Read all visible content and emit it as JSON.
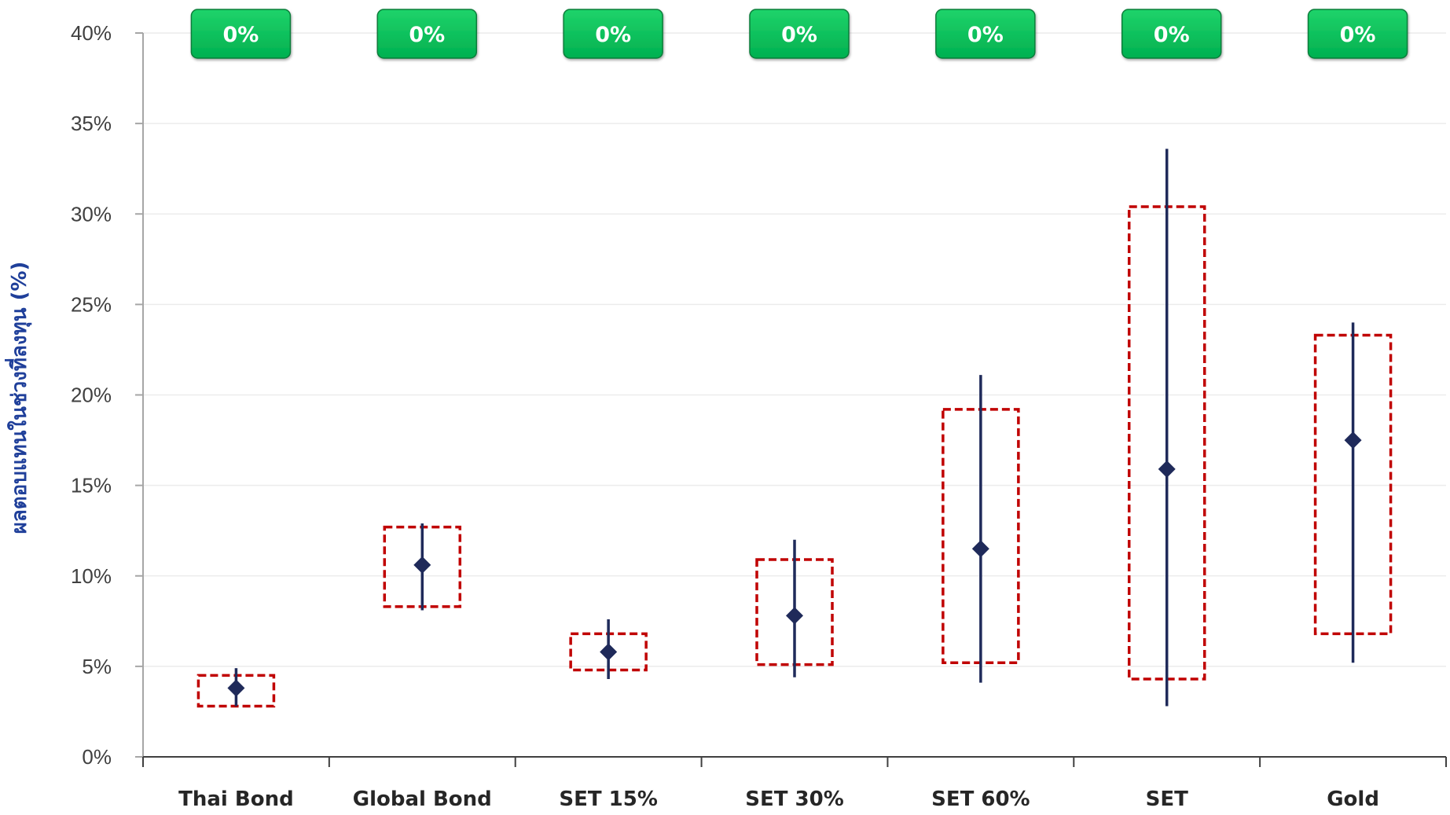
{
  "chart_data": {
    "type": "box",
    "ylabel": "ผลตอบแทนในช่วงที่ลงทุน (%)",
    "xlabel": "",
    "ylim": [
      0,
      40
    ],
    "yticks": [
      "0%",
      "5%",
      "10%",
      "15%",
      "20%",
      "25%",
      "30%",
      "35%",
      "40%"
    ],
    "grid": true,
    "colors": {
      "box_border": "#c00000",
      "whisker": "#1f2a5a",
      "badge": "#00b050",
      "axis": "#a6a6a6",
      "ylabel": "#1f3f9a"
    },
    "categories": [
      "Thai Bond",
      "Global Bond",
      "SET 15%",
      "SET 30%",
      "SET 60%",
      "SET",
      "Gold"
    ],
    "badges": [
      "0%",
      "0%",
      "0%",
      "0%",
      "0%",
      "0%",
      "0%"
    ],
    "series": [
      {
        "category": "Thai Bond",
        "min": 2.8,
        "q1": 2.8,
        "mean": 3.8,
        "q3": 4.5,
        "max": 4.9
      },
      {
        "category": "Global Bond",
        "min": 8.1,
        "q1": 8.3,
        "mean": 10.6,
        "q3": 12.7,
        "max": 12.9
      },
      {
        "category": "SET 15%",
        "min": 4.3,
        "q1": 4.8,
        "mean": 5.8,
        "q3": 6.8,
        "max": 7.6
      },
      {
        "category": "SET 30%",
        "min": 4.4,
        "q1": 5.1,
        "mean": 7.8,
        "q3": 10.9,
        "max": 12.0
      },
      {
        "category": "SET 60%",
        "min": 4.1,
        "q1": 5.2,
        "mean": 11.5,
        "q3": 19.2,
        "max": 21.1
      },
      {
        "category": "SET",
        "min": 2.8,
        "q1": 4.3,
        "mean": 15.9,
        "q3": 30.4,
        "max": 33.6
      },
      {
        "category": "Gold",
        "min": 5.2,
        "q1": 6.8,
        "mean": 17.5,
        "q3": 23.3,
        "max": 24.0
      }
    ]
  }
}
